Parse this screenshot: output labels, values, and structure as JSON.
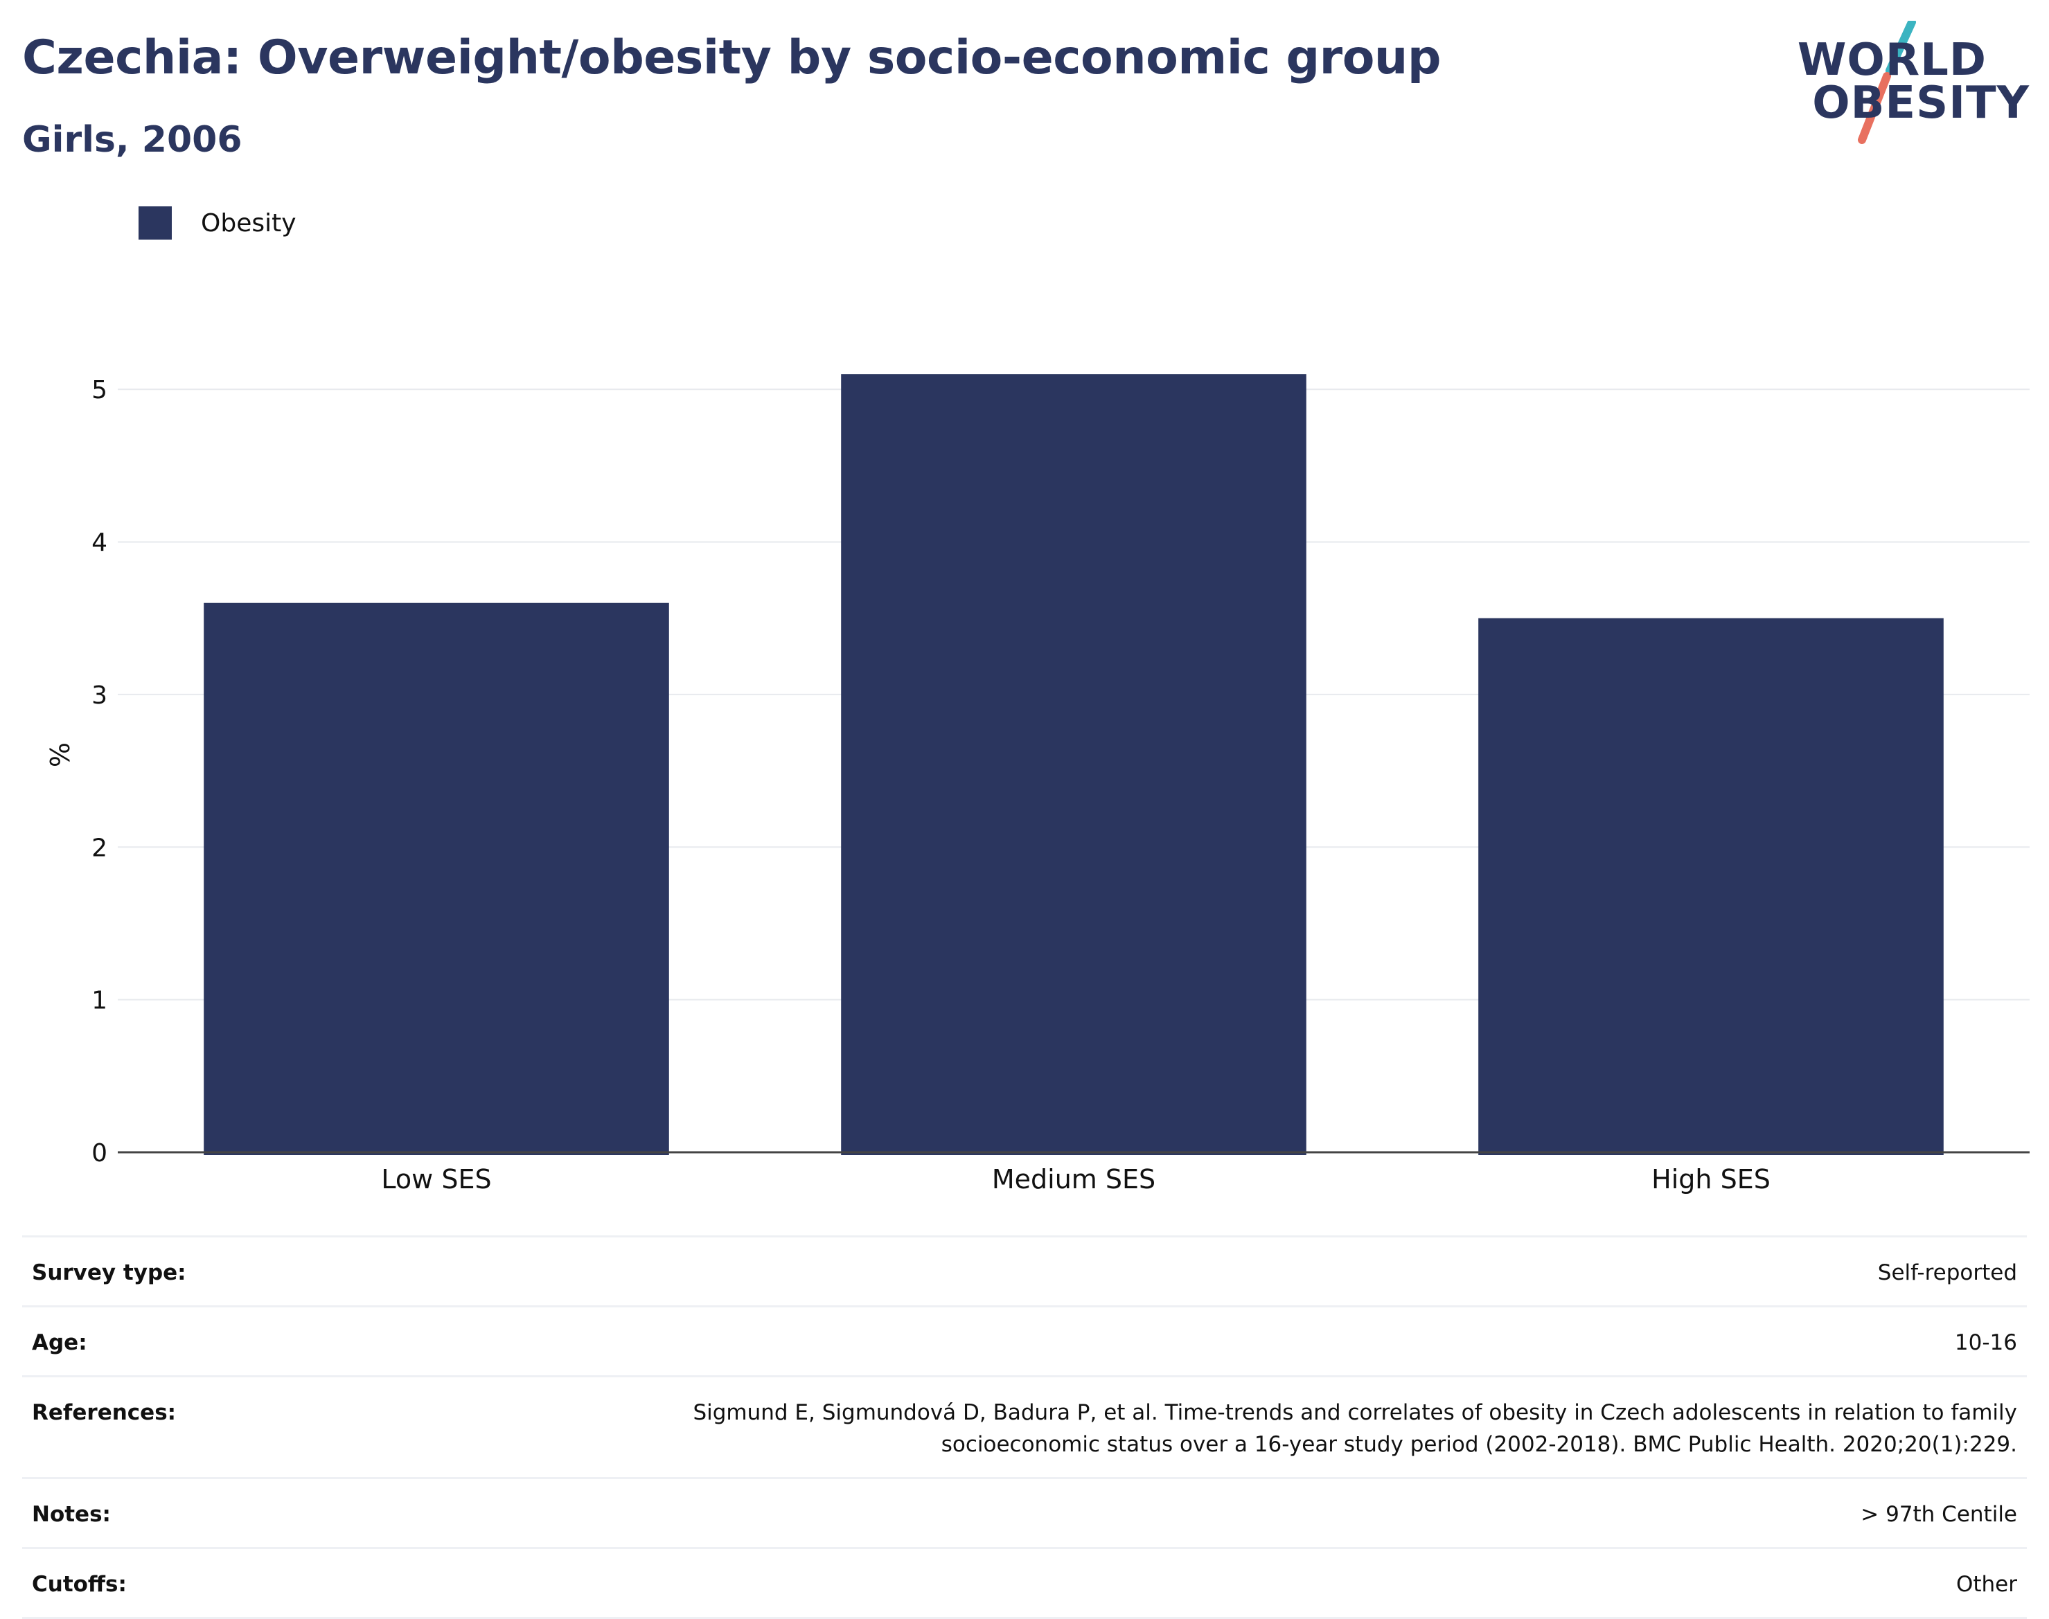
{
  "header": {
    "title": "Czechia: Overweight/obesity by socio-economic group",
    "subtitle": "Girls, 2006"
  },
  "logo": {
    "line1": "WORLD",
    "line2": "OBESITY",
    "accent_colors": [
      "#3bb4c1",
      "#e8705f"
    ]
  },
  "legend": {
    "items": [
      {
        "label": "Obesity",
        "color": "#2b365f"
      }
    ]
  },
  "chart_data": {
    "type": "bar",
    "title": "Czechia: Overweight/obesity by socio-economic group",
    "subtitle": "Girls, 2006",
    "categories": [
      "Low SES",
      "Medium SES",
      "High SES"
    ],
    "series": [
      {
        "name": "Obesity",
        "values": [
          3.6,
          5.1,
          3.5
        ],
        "color": "#2b365f"
      }
    ],
    "xlabel": "",
    "ylabel": "%",
    "ylim": [
      0,
      5.6
    ],
    "yticks": [
      0,
      1,
      2,
      3,
      4,
      5
    ],
    "grid": true,
    "legend_position": "top-left"
  },
  "info": {
    "rows": [
      {
        "key": "Survey type:",
        "value": "Self-reported"
      },
      {
        "key": "Age:",
        "value": "10-16"
      },
      {
        "key": "References:",
        "value": "Sigmund E, Sigmundová D, Badura P, et al. Time-trends and correlates of obesity in Czech adolescents in relation to family socioeconomic status over a 16-year study period (2002-2018). BMC Public Health. 2020;20(1):229."
      },
      {
        "key": "Notes:",
        "value": "> 97th Centile"
      },
      {
        "key": "Cutoffs:",
        "value": "Other"
      }
    ]
  }
}
